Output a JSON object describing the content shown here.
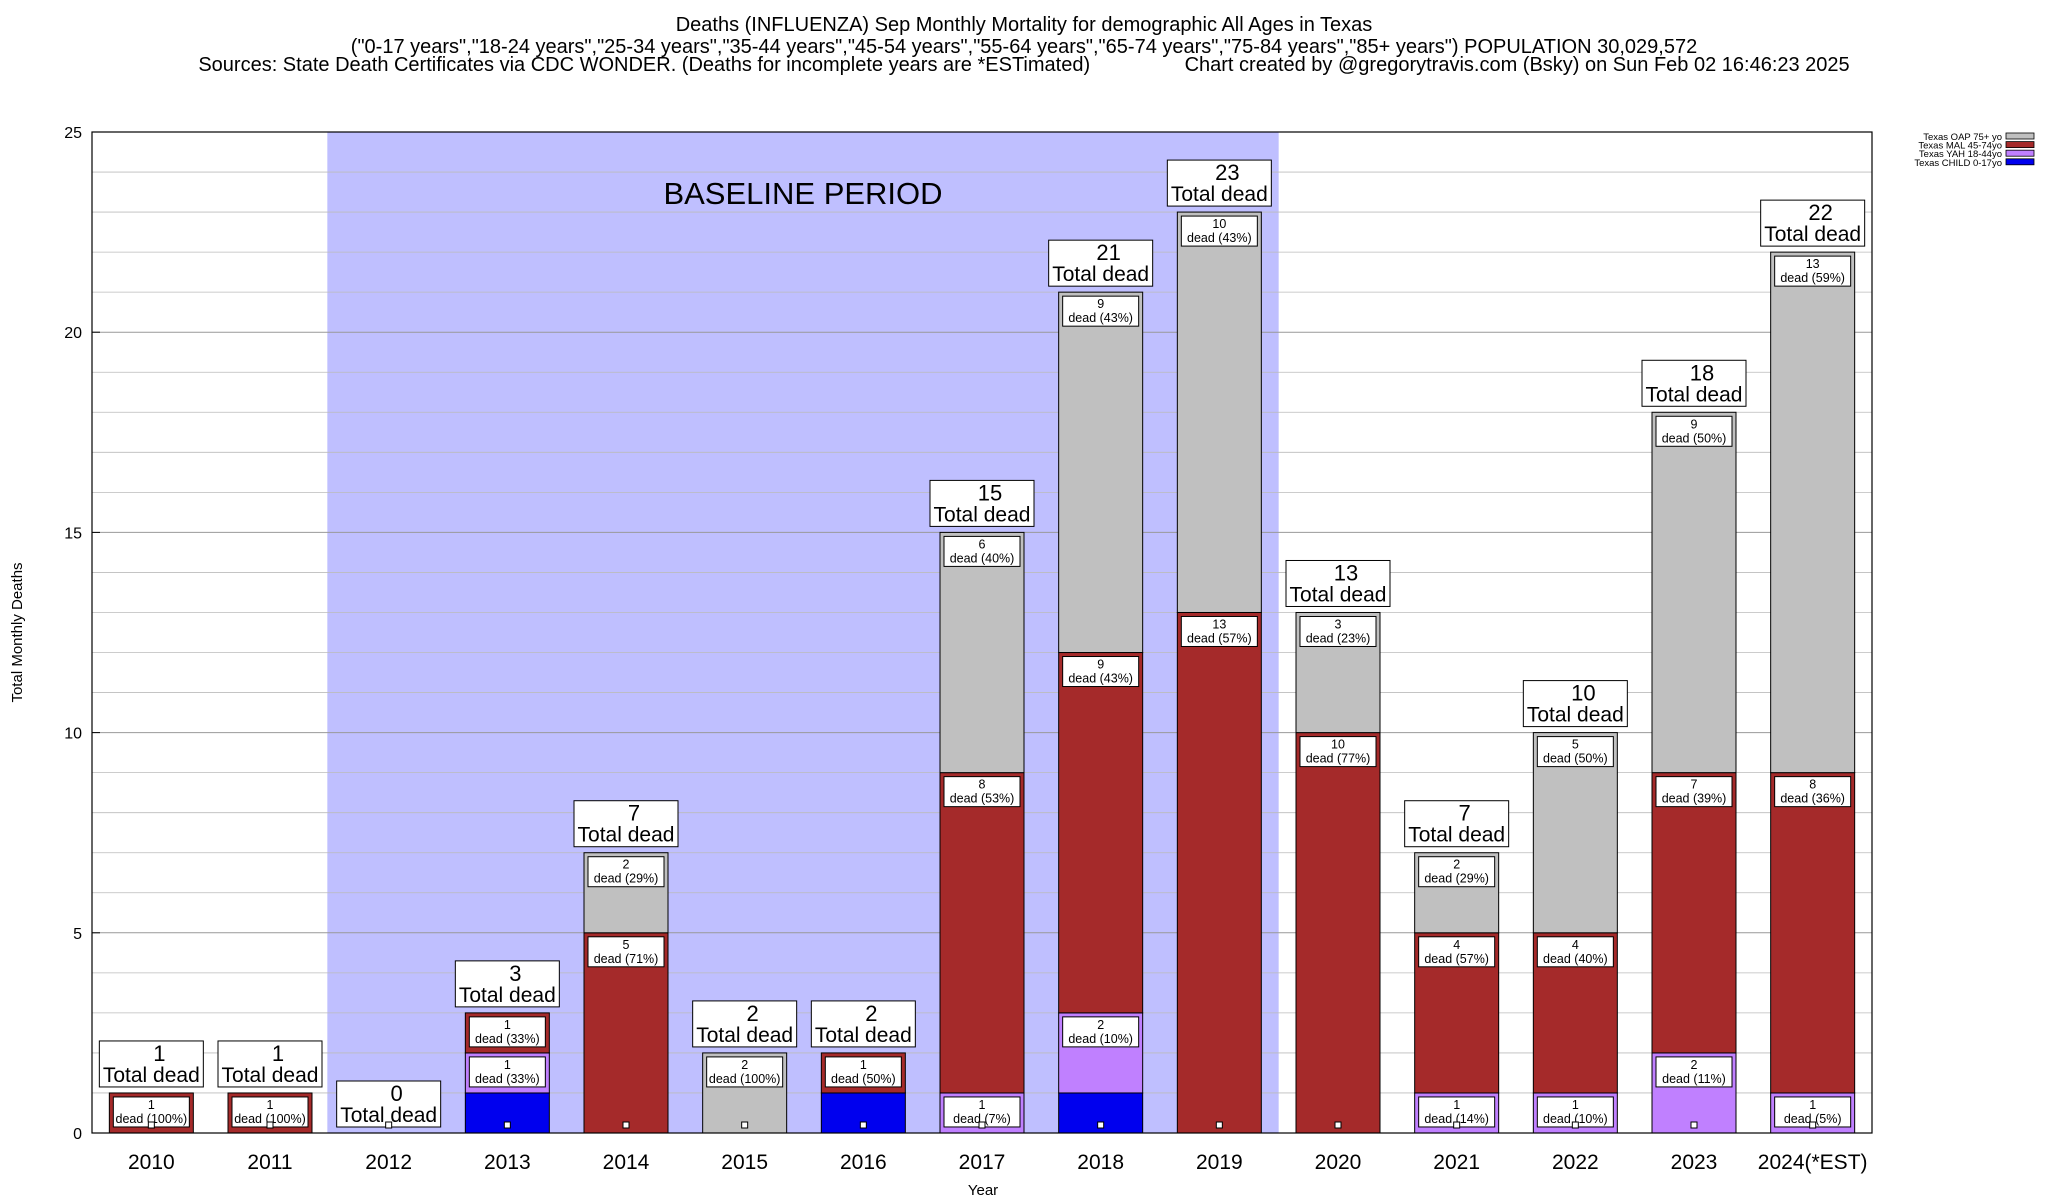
{
  "header": {
    "line1": "Deaths (INFLUENZA) Sep Monthly Mortality for demographic All Ages in Texas",
    "line2": "(\"0-17 years\",\"18-24 years\",\"25-34 years\",\"35-44 years\",\"45-54 years\",\"55-64 years\",\"65-74 years\",\"75-84 years\",\"85+ years\") POPULATION 30,029,572",
    "line3": "Sources: State Death Certificates via CDC WONDER. (Deaths for incomplete years are *ESTimated)                 Chart created by @gregorytravis.com (Bsky) on Sun Feb 02 16:46:23 2025"
  },
  "chart_data": {
    "type": "bar",
    "stacked": true,
    "xlabel": "Year",
    "ylabel": "Total Monthly Deaths",
    "ylim": [
      0,
      25
    ],
    "yticks": [
      0,
      5,
      10,
      15,
      20,
      25
    ],
    "grid": true,
    "legend_position": "top-right",
    "baseline_label": "BASELINE PERIOD",
    "baseline_range": [
      "2012",
      "2019"
    ],
    "categories": [
      "2010",
      "2011",
      "2012",
      "2013",
      "2014",
      "2015",
      "2016",
      "2017",
      "2018",
      "2019",
      "2020",
      "2021",
      "2022",
      "2023",
      "2024(*EST)"
    ],
    "series": [
      {
        "name": "Texas CHILD 0-17yo",
        "color": "#0000ee",
        "values": [
          0,
          0,
          0,
          1,
          0,
          0,
          1,
          0,
          1,
          0,
          0,
          0,
          0,
          0,
          0
        ]
      },
      {
        "name": "Texas YAH 18-44yo",
        "color": "#c080ff",
        "values": [
          0,
          0,
          0,
          1,
          0,
          0,
          0,
          1,
          2,
          0,
          0,
          1,
          1,
          2,
          1
        ]
      },
      {
        "name": "Texas MAL 45-74yo",
        "color": "#a52a2a",
        "values": [
          1,
          1,
          0,
          1,
          5,
          0,
          1,
          8,
          9,
          13,
          10,
          4,
          4,
          7,
          8
        ]
      },
      {
        "name": "Texas OAP 75+ yo",
        "color": "#c0c0c0",
        "values": [
          0,
          0,
          0,
          0,
          2,
          2,
          0,
          6,
          9,
          10,
          3,
          2,
          5,
          9,
          13
        ]
      }
    ],
    "totals": [
      1,
      1,
      0,
      3,
      7,
      2,
      2,
      15,
      21,
      23,
      13,
      7,
      10,
      18,
      22
    ],
    "total_suffix": "Total dead",
    "segment_labels": [
      [
        {
          "series": 2,
          "n": "1",
          "t": "dead (100%)"
        }
      ],
      [
        {
          "series": 2,
          "n": "1",
          "t": "dead (100%)"
        }
      ],
      [],
      [
        {
          "series": 1,
          "n": "1",
          "t": "dead (33%)"
        },
        {
          "series": 2,
          "n": "1",
          "t": "dead (33%)"
        }
      ],
      [
        {
          "series": 2,
          "n": "5",
          "t": "dead (71%)"
        },
        {
          "series": 3,
          "n": "2",
          "t": "dead (29%)"
        }
      ],
      [
        {
          "series": 3,
          "n": "2",
          "t": "dead (100%)"
        }
      ],
      [
        {
          "series": 2,
          "n": "1",
          "t": "dead (50%)"
        }
      ],
      [
        {
          "series": 1,
          "n": "1",
          "t": "dead (7%)"
        },
        {
          "series": 2,
          "n": "8",
          "t": "dead (53%)"
        },
        {
          "series": 3,
          "n": "6",
          "t": "dead (40%)"
        }
      ],
      [
        {
          "series": 1,
          "n": "2",
          "t": "dead (10%)"
        },
        {
          "series": 2,
          "n": "9",
          "t": "dead (43%)"
        },
        {
          "series": 3,
          "n": "9",
          "t": "dead (43%)"
        }
      ],
      [
        {
          "series": 2,
          "n": "13",
          "t": "dead (57%)"
        },
        {
          "series": 3,
          "n": "10",
          "t": "dead (43%)"
        }
      ],
      [
        {
          "series": 2,
          "n": "10",
          "t": "dead (77%)"
        },
        {
          "series": 3,
          "n": "3",
          "t": "dead (23%)"
        }
      ],
      [
        {
          "series": 1,
          "n": "1",
          "t": "dead (14%)"
        },
        {
          "series": 2,
          "n": "4",
          "t": "dead (57%)"
        },
        {
          "series": 3,
          "n": "2",
          "t": "dead (29%)"
        }
      ],
      [
        {
          "series": 1,
          "n": "1",
          "t": "dead (10%)"
        },
        {
          "series": 2,
          "n": "4",
          "t": "dead (40%)"
        },
        {
          "series": 3,
          "n": "5",
          "t": "dead (50%)"
        }
      ],
      [
        {
          "series": 1,
          "n": "2",
          "t": "dead (11%)"
        },
        {
          "series": 2,
          "n": "7",
          "t": "dead (39%)"
        },
        {
          "series": 3,
          "n": "9",
          "t": "dead (50%)"
        }
      ],
      [
        {
          "series": 1,
          "n": "1",
          "t": "dead (5%)"
        },
        {
          "series": 2,
          "n": "8",
          "t": "dead (36%)"
        },
        {
          "series": 3,
          "n": "13",
          "t": "dead (59%)"
        }
      ]
    ]
  }
}
